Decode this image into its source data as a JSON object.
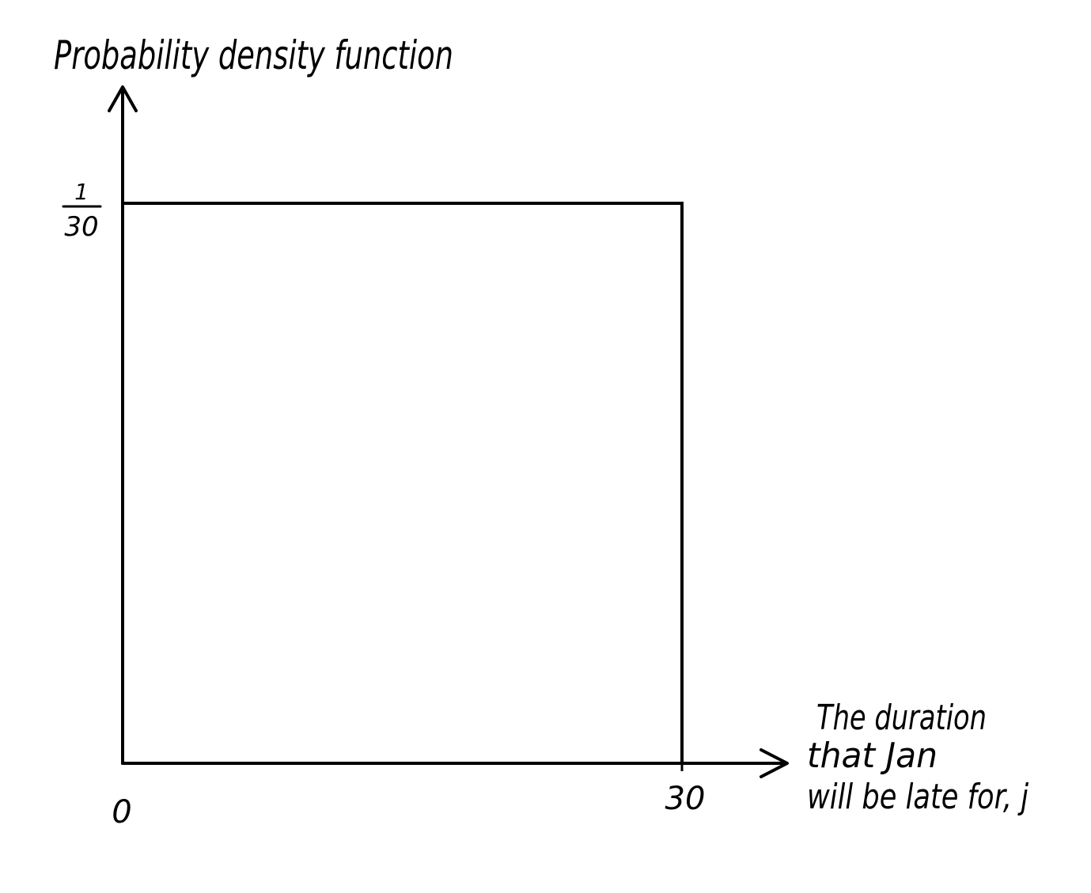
{
  "chart_data": {
    "type": "line",
    "title": "",
    "ylabel": "Probability density function",
    "xlabel_lines": [
      "The duration",
      "that Jan",
      "will be late for, j"
    ],
    "origin_label": "0",
    "x_tick_labels": [
      "30"
    ],
    "x_ticks": [
      30
    ],
    "y_tick": {
      "value": 0.0333333,
      "numerator": "1",
      "denominator": "30"
    },
    "xlim": [
      0,
      30
    ],
    "ylim": [
      0,
      0.0333333
    ],
    "series": [
      {
        "x": [
          0,
          30,
          30
        ],
        "y": [
          0.0333333,
          0.0333333,
          0
        ]
      }
    ],
    "grid": false,
    "legend": "none",
    "color": "#000000"
  }
}
